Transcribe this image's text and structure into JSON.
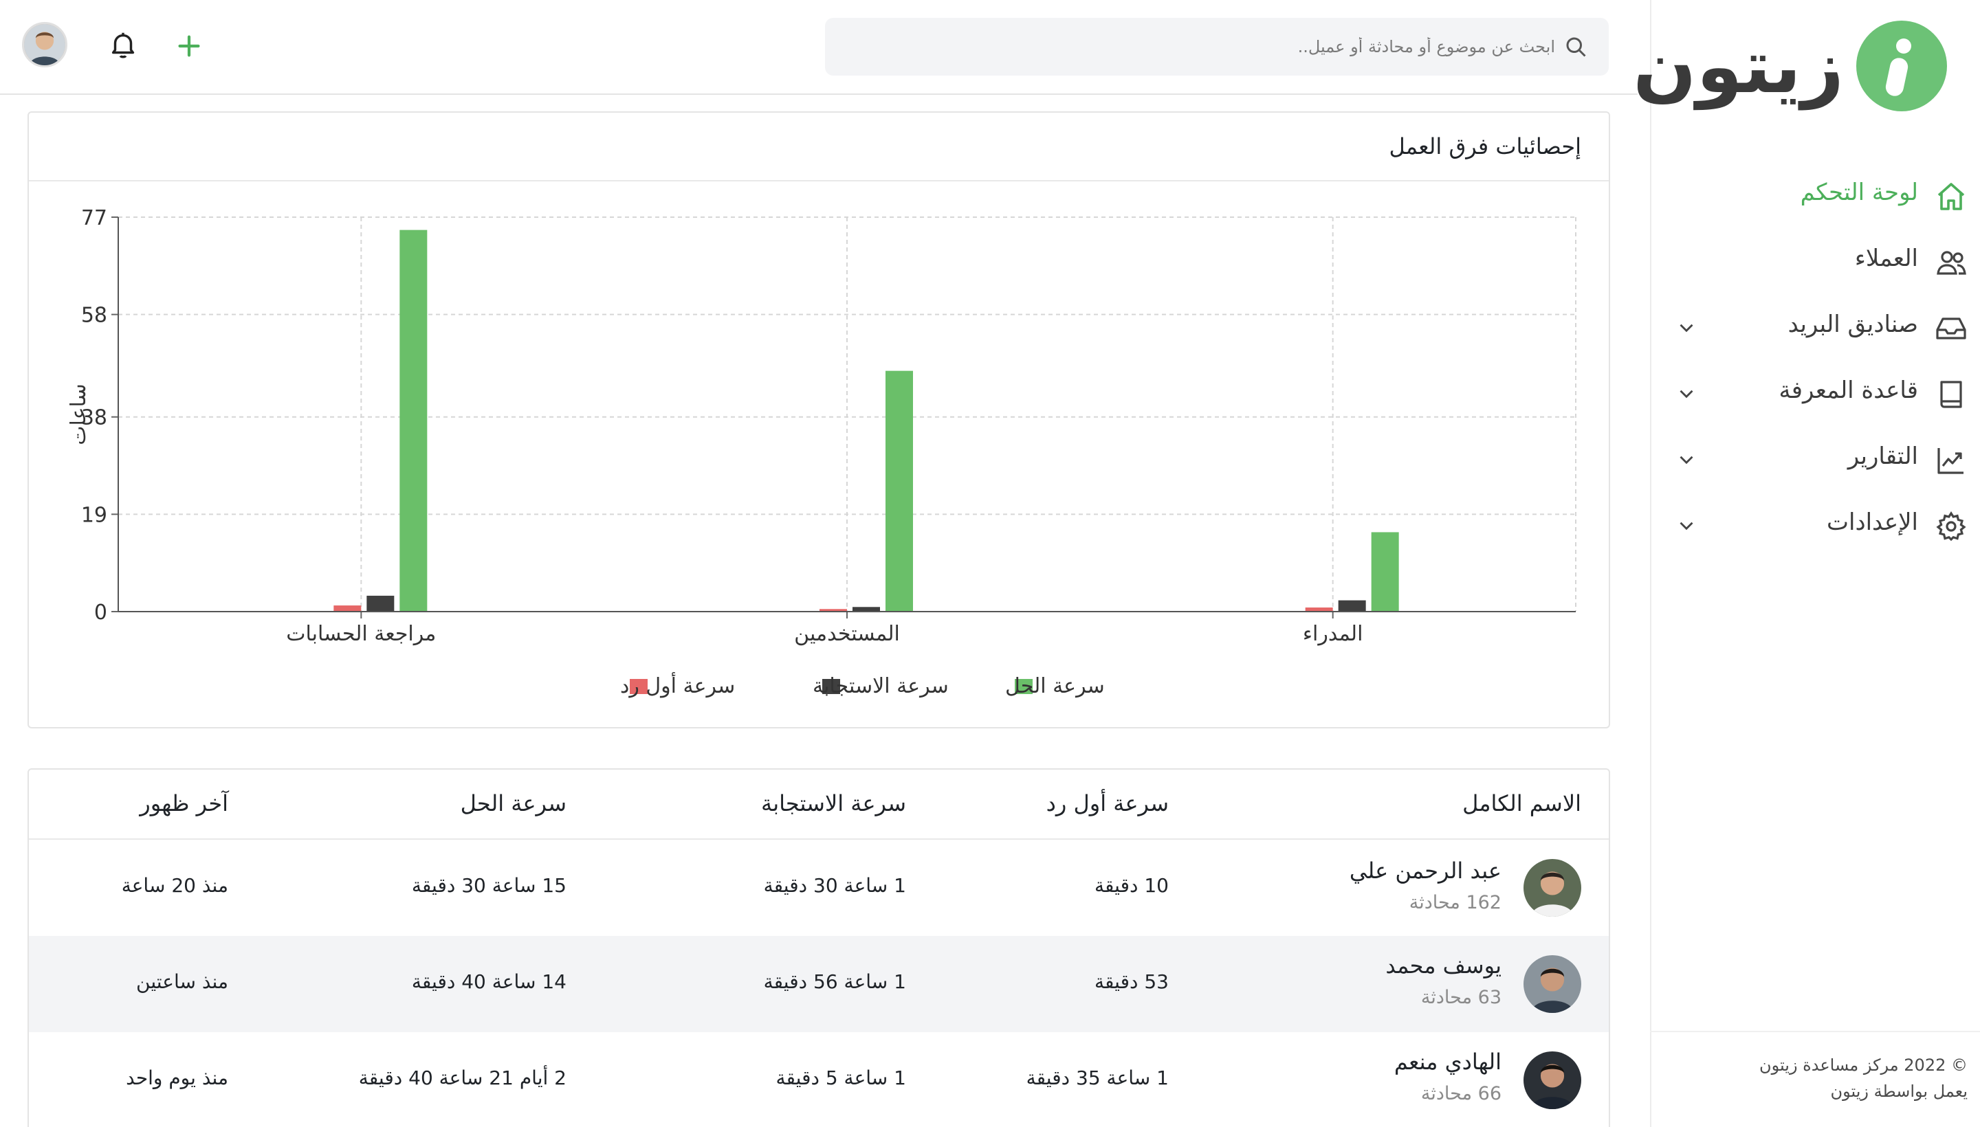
{
  "brand": {
    "name": "زيتون",
    "accent": "#6cc276"
  },
  "sidebar": {
    "items": [
      {
        "label": "لوحة التحكم",
        "icon": "home-icon",
        "active": true,
        "expandable": false
      },
      {
        "label": "العملاء",
        "icon": "users-icon",
        "active": false,
        "expandable": false
      },
      {
        "label": "صناديق البريد",
        "icon": "inbox-icon",
        "active": false,
        "expandable": true
      },
      {
        "label": "قاعدة المعرفة",
        "icon": "book-icon",
        "active": false,
        "expandable": true
      },
      {
        "label": "التقارير",
        "icon": "chart-line-icon",
        "active": false,
        "expandable": true
      },
      {
        "label": "الإعدادات",
        "icon": "gear-icon",
        "active": false,
        "expandable": true
      }
    ],
    "footer": {
      "line1": "© 2022 مركز مساعدة زيتون",
      "line2": "يعمل بواسطة زيتون"
    }
  },
  "topbar": {
    "search_placeholder": "ابحث عن موضوع أو محادثة أو عميل..",
    "icons": [
      "search-icon",
      "plus-icon",
      "bell-icon",
      "avatar"
    ]
  },
  "chart_card": {
    "title": "إحصائيات فرق العمل"
  },
  "chart_data": {
    "type": "bar",
    "title": "",
    "xlabel": "",
    "ylabel": "ساعات",
    "categories": [
      "المدراء",
      "المستخدمين",
      "مراجعة الحسابات"
    ],
    "yticks": [
      0,
      19,
      38,
      58,
      77
    ],
    "ylim": [
      0,
      77
    ],
    "grid": true,
    "legend": "bottom-center",
    "series": [
      {
        "name": "سرعة الحل",
        "color": "#6abf69",
        "values": [
          15.5,
          47,
          74.5
        ]
      },
      {
        "name": "سرعة الاستجابة",
        "color": "#3f3f3f",
        "values": [
          2.2,
          0.9,
          3.1
        ]
      },
      {
        "name": "سرعة أول رد",
        "color": "#e66767",
        "values": [
          0.8,
          0.5,
          1.2
        ]
      }
    ]
  },
  "table": {
    "headers": {
      "name": "الاسم الكامل",
      "first_reply": "سرعة أول رد",
      "response": "سرعة الاستجابة",
      "resolution": "سرعة الحل",
      "last_seen": "آخر ظهور"
    },
    "rows": [
      {
        "name": "عبد الرحمن علي",
        "conversations": "162 محادثة",
        "first_reply": "10 دقيقة",
        "response": "1 ساعة 30 دقيقة",
        "resolution": "15 ساعة 30 دقيقة",
        "last_seen": "منذ 20 ساعة"
      },
      {
        "name": "يوسف محمد",
        "conversations": "63 محادثة",
        "first_reply": "53 دقيقة",
        "response": "1 ساعة 56 دقيقة",
        "resolution": "14 ساعة 40 دقيقة",
        "last_seen": "منذ ساعتين"
      },
      {
        "name": "الهادي منعم",
        "conversations": "66 محادثة",
        "first_reply": "1 ساعة 35 دقيقة",
        "response": "1 ساعة 5 دقيقة",
        "resolution": "2 أيام 21 ساعة 40 دقيقة",
        "last_seen": "منذ يوم واحد"
      }
    ]
  }
}
